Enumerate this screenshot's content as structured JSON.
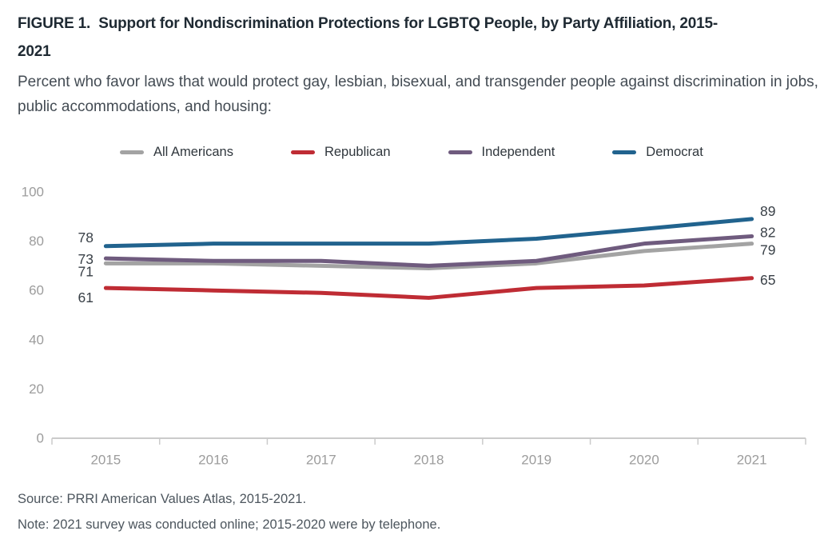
{
  "figure": {
    "title": "FIGURE 1.  Support for Nondiscrimination Protections for LGBTQ People, by Party Affiliation, 2015-2021",
    "subtitle": "Percent who favor laws that would protect gay, lesbian, bisexual, and transgender people against discrimination in jobs, public accommodations, and housing:",
    "source": "Source: PRRI American Values Atlas, 2015-2021.",
    "note": "Note: 2021 survey was conducted online; 2015-2020 were by telephone."
  },
  "chart_data": {
    "type": "line",
    "title": "Support for Nondiscrimination Protections for LGBTQ People, by Party Affiliation, 2015-2021",
    "x": [
      "2015",
      "2016",
      "2017",
      "2018",
      "2019",
      "2020",
      "2021"
    ],
    "series": [
      {
        "name": "All Americans",
        "slug": "all-americans",
        "color": "#a3a3a3",
        "values": [
          71,
          71,
          70,
          69,
          71,
          76,
          79
        ],
        "first_label": "71",
        "last_label": "79"
      },
      {
        "name": "Republican",
        "slug": "republican",
        "color": "#bf2c34",
        "values": [
          61,
          60,
          59,
          57,
          61,
          62,
          65
        ],
        "first_label": "61",
        "last_label": "65"
      },
      {
        "name": "Independent",
        "slug": "independent",
        "color": "#6f5b7e",
        "values": [
          73,
          72,
          72,
          70,
          72,
          79,
          82
        ],
        "first_label": "73",
        "last_label": "82"
      },
      {
        "name": "Democrat",
        "slug": "democrat",
        "color": "#21638e",
        "values": [
          78,
          79,
          79,
          79,
          81,
          85,
          89
        ],
        "first_label": "78",
        "last_label": "89"
      }
    ],
    "legend_order": [
      "All Americans",
      "Republican",
      "Independent",
      "Democrat"
    ],
    "ylim": [
      0,
      100
    ],
    "yticks": [
      0,
      20,
      40,
      60,
      80,
      100
    ],
    "value_labels": "first_and_last_points_only",
    "grid": false,
    "legend_position": "top",
    "axis_color": "#cbcbcb",
    "tick_label_color": "#9c9c9c",
    "value_label_color": "#394047"
  }
}
